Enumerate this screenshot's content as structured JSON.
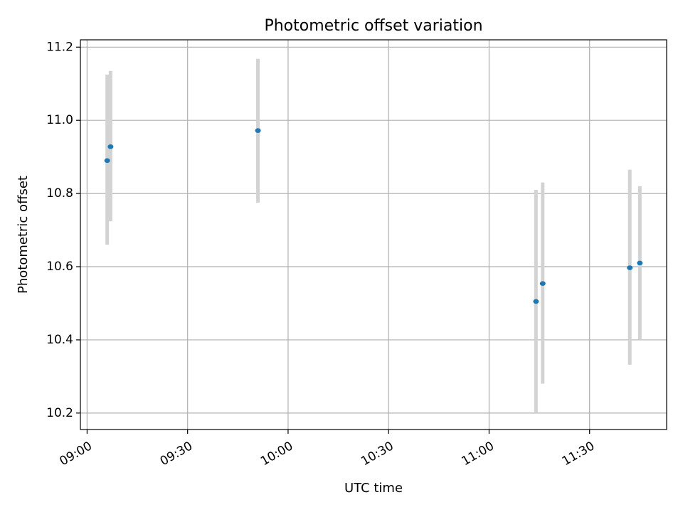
{
  "chart_data": {
    "type": "scatter",
    "title": "Photometric offset variation",
    "xlabel": "UTC time",
    "ylabel": "Photometric offset",
    "grid": true,
    "x_axis_type": "time",
    "xlim": [
      "08:58",
      "11:53"
    ],
    "ylim": [
      10.155,
      11.22
    ],
    "x_ticks": [
      "09:00",
      "09:30",
      "10:00",
      "10:30",
      "11:00",
      "11:30"
    ],
    "y_ticks": [
      10.2,
      10.4,
      10.6,
      10.8,
      11.0,
      11.2
    ],
    "y_tick_labels": [
      "10.2",
      "10.4",
      "10.6",
      "10.8",
      "11.0",
      "11.2"
    ],
    "marker_color": "#1f77b4",
    "errorbar_color": "#d3d3d3",
    "points": [
      {
        "x": "09:06",
        "y": 10.89,
        "yerr_low": 10.66,
        "yerr_high": 11.125
      },
      {
        "x": "09:07",
        "y": 10.928,
        "yerr_low": 10.724,
        "yerr_high": 11.135
      },
      {
        "x": "09:51",
        "y": 10.972,
        "yerr_low": 10.775,
        "yerr_high": 11.168
      },
      {
        "x": "11:14",
        "y": 10.505,
        "yerr_low": 10.2,
        "yerr_high": 10.81
      },
      {
        "x": "11:16",
        "y": 10.554,
        "yerr_low": 10.28,
        "yerr_high": 10.83
      },
      {
        "x": "11:42",
        "y": 10.597,
        "yerr_low": 10.332,
        "yerr_high": 10.865
      },
      {
        "x": "11:45",
        "y": 10.61,
        "yerr_low": 10.4,
        "yerr_high": 10.82
      }
    ]
  }
}
